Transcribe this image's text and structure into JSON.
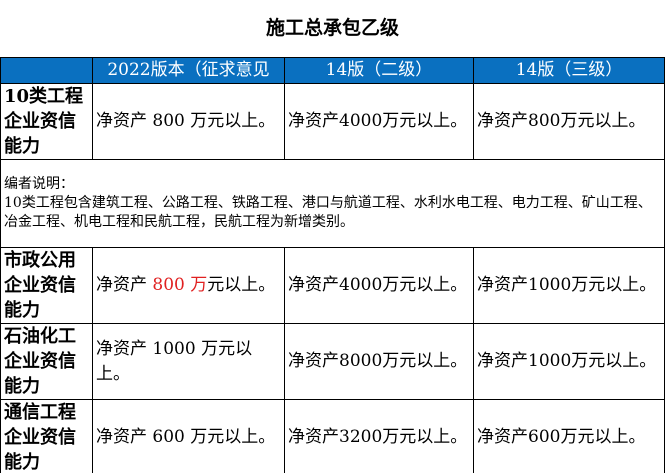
{
  "title": "施工总承包乙级",
  "columns": [
    "",
    "2022版本（征求意见",
    "14版（二级）",
    "14版（三级）"
  ],
  "rows": [
    {
      "label": "10类工程企业资信能力",
      "v2022": "净资产 800 万元以上。",
      "v14_2": "净资产4000万元以上。",
      "v14_3": "净资产800万元以上。"
    },
    {
      "label": "市政公用企业资信能力",
      "v2022_pre": "净资产 ",
      "v2022_red": "800 万",
      "v2022_post": "元以上。",
      "v14_2": "净资产4000万元以上。",
      "v14_3": "净资产1000万元以上。"
    },
    {
      "label": "石油化工企业资信能力",
      "v2022": "净资产 1000 万元以上。",
      "v14_2": "净资产8000万元以上。",
      "v14_3": "净资产1000万元以上。"
    },
    {
      "label": "通信工程企业资信能力",
      "v2022": "净资产 600 万元以上。",
      "v14_2": "净资产3200万元以上。",
      "v14_3": "净资产600万元以上。"
    }
  ],
  "note": {
    "heading": "编者说明：",
    "text": "10类工程包含建筑工程、公路工程、铁路工程、港口与航道工程、水利水电工程、电力工程、矿山工程、冶金工程、机电工程和民航工程，民航工程为新增类别。"
  },
  "colors": {
    "header": "#0a70c0",
    "highlight": "#e02020"
  }
}
